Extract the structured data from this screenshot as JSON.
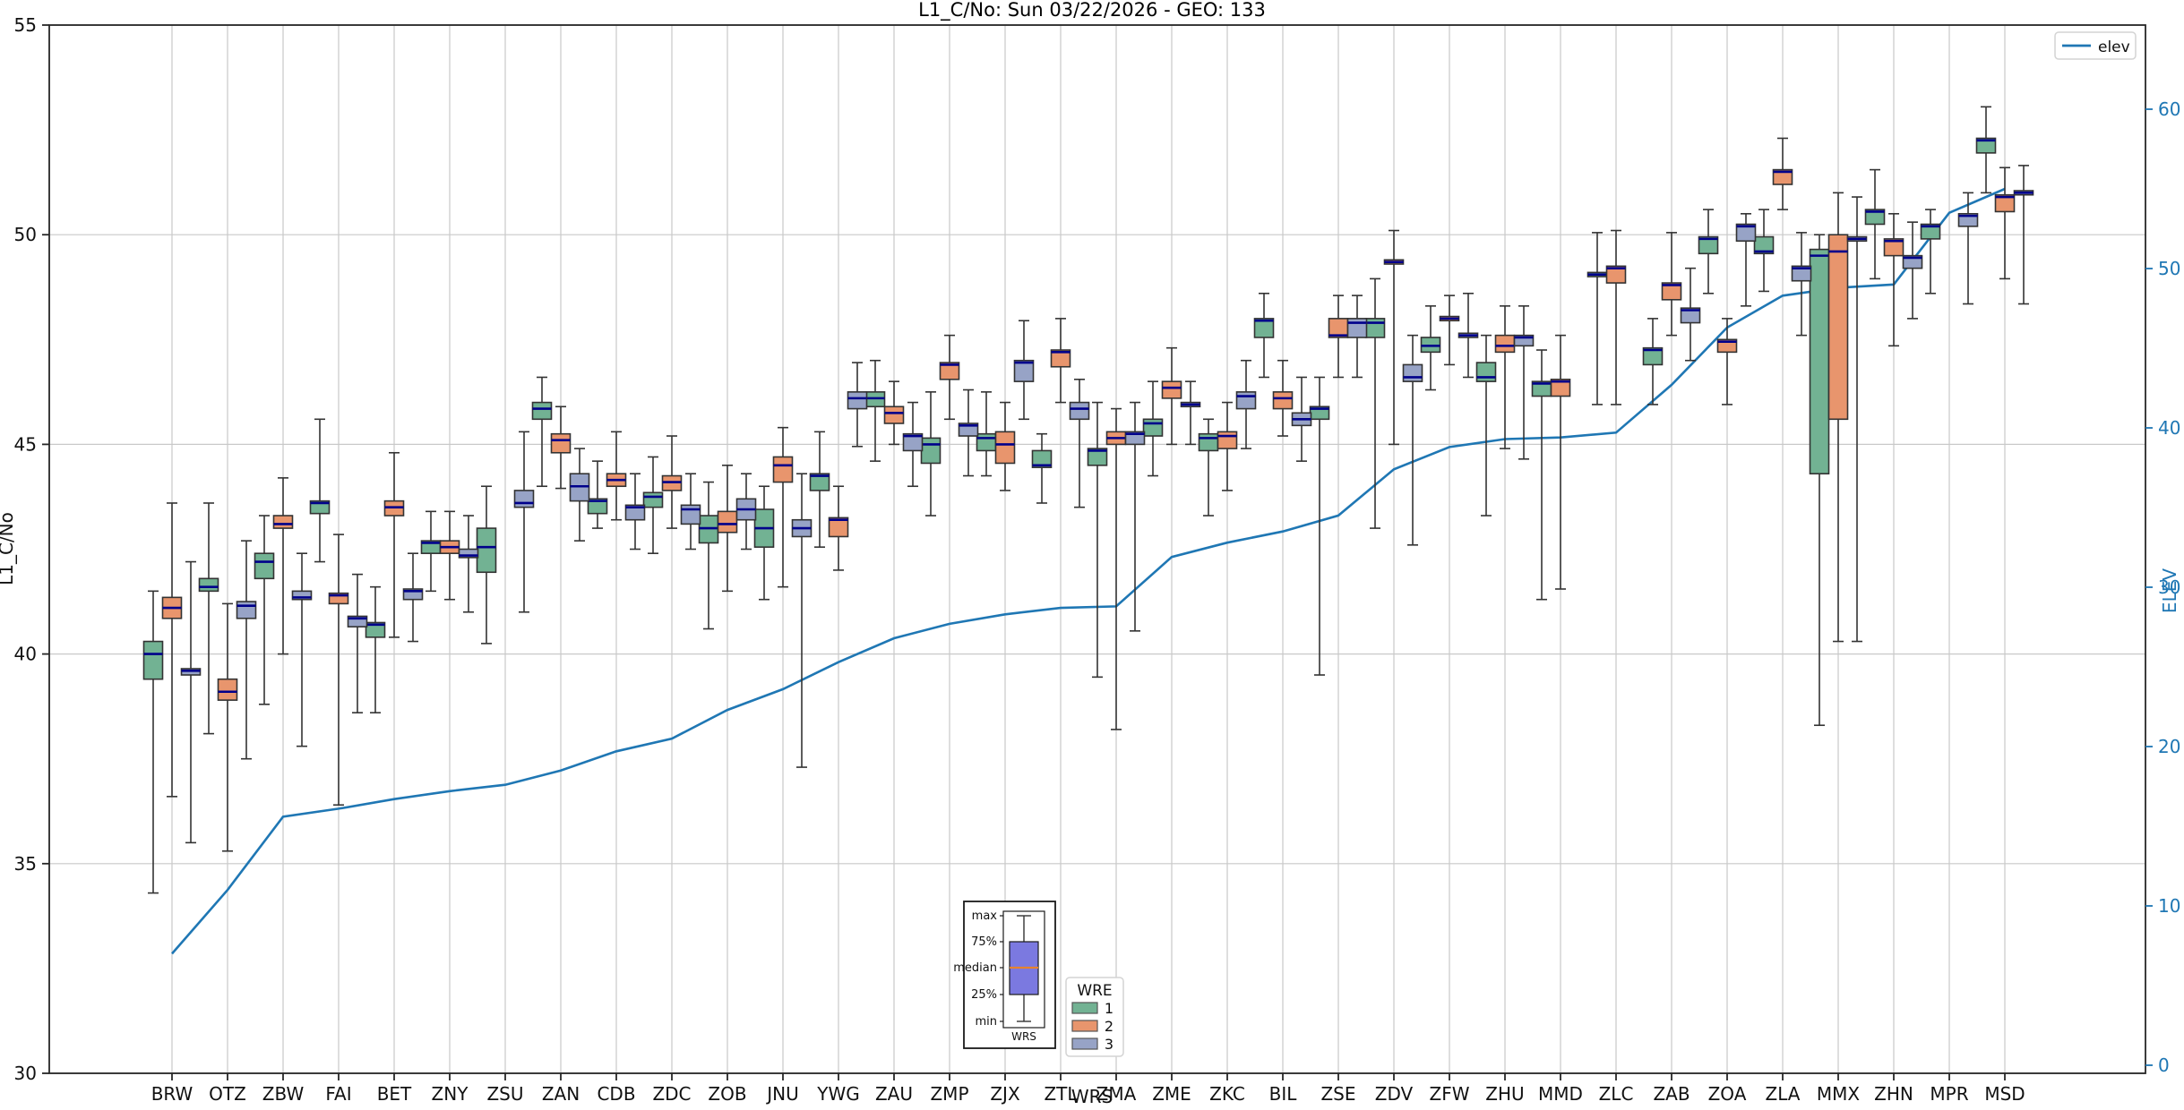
{
  "colors": {
    "wre1": "#72b293",
    "wre2": "#e8956d",
    "wre3": "#97a3c6",
    "box_edge": "#333333",
    "median": "#00008b",
    "whisker": "#333333",
    "elev_line": "#1f77b4",
    "grid": "#c9c9c9",
    "spine": "#262626",
    "right_axis_text": "#1f77b4",
    "legend_border": "#d4d4d4",
    "inset_box_fill": "#7b79e0",
    "inset_median": "#e8822d"
  },
  "chart_data": {
    "type": "boxplot+line",
    "title": "L1_C/No: Sun 03/22/2026 - GEO: 133",
    "xlabel": "WRS",
    "ylabel_left": "L1_C/No",
    "ylabel_right": "ELEV",
    "ylim_left": [
      30,
      55
    ],
    "yticks_left": [
      30,
      35,
      40,
      45,
      50,
      55
    ],
    "ylim_right": [
      0,
      65
    ],
    "yticks_right": [
      0,
      10,
      20,
      30,
      40,
      50,
      60
    ],
    "grid": true,
    "legend_line": {
      "label": "elev"
    },
    "legend_wre": {
      "title": "WRE",
      "items": [
        {
          "label": "1"
        },
        {
          "label": "2"
        },
        {
          "label": "3"
        }
      ]
    },
    "inset_legend": {
      "labels": [
        "max",
        "75%",
        "median",
        "25%",
        "min"
      ],
      "xlabel": "WRS"
    },
    "categories": [
      "BRW",
      "OTZ",
      "ZBW",
      "FAI",
      "BET",
      "ZNY",
      "ZSU",
      "ZAN",
      "CDB",
      "ZDC",
      "ZOB",
      "JNU",
      "YWG",
      "ZAU",
      "ZMP",
      "ZJX",
      "ZTL",
      "ZMA",
      "ZME",
      "ZKC",
      "BIL",
      "ZSE",
      "ZDV",
      "ZFW",
      "ZHU",
      "MMD",
      "ZLC",
      "ZAB",
      "ZOA",
      "ZLA",
      "MMX",
      "ZHN",
      "MPR",
      "MSD"
    ],
    "series": [
      {
        "name": "1",
        "boxes": [
          [
            34.3,
            39.4,
            40.0,
            40.3,
            41.5
          ],
          [
            38.1,
            41.5,
            41.6,
            41.8,
            43.6
          ],
          [
            38.8,
            41.8,
            42.2,
            42.4,
            43.3
          ],
          [
            42.2,
            43.35,
            43.6,
            43.65,
            45.6
          ],
          [
            38.6,
            40.4,
            40.7,
            40.75,
            41.6
          ],
          [
            41.5,
            42.4,
            42.65,
            42.7,
            43.4
          ],
          [
            40.25,
            41.95,
            42.55,
            43.0,
            44.0
          ],
          [
            44.0,
            45.6,
            45.85,
            46.0,
            46.6
          ],
          [
            43.0,
            43.35,
            43.65,
            43.7,
            44.6
          ],
          [
            42.4,
            43.5,
            43.75,
            43.85,
            44.7
          ],
          [
            40.6,
            42.65,
            43.0,
            43.3,
            44.1
          ],
          [
            41.3,
            42.55,
            43.0,
            43.45,
            44.0
          ],
          [
            42.55,
            43.9,
            44.25,
            44.3,
            45.3
          ],
          [
            44.6,
            45.9,
            46.1,
            46.25,
            47.0
          ],
          [
            43.3,
            44.55,
            45.0,
            45.15,
            46.25
          ],
          [
            44.25,
            44.85,
            45.15,
            45.25,
            46.25
          ],
          [
            43.6,
            44.45,
            44.5,
            44.85,
            45.25
          ],
          [
            39.45,
            44.5,
            44.85,
            44.9,
            46.0
          ],
          [
            44.25,
            45.2,
            45.5,
            45.6,
            46.5
          ],
          [
            43.3,
            44.85,
            45.15,
            45.25,
            45.6
          ],
          [
            46.6,
            47.55,
            47.95,
            48.0,
            48.6
          ],
          [
            39.5,
            45.6,
            45.85,
            45.9,
            46.6
          ],
          [
            43.0,
            47.55,
            47.9,
            48.0,
            48.95
          ],
          [
            46.3,
            47.2,
            47.35,
            47.55,
            48.3
          ],
          [
            43.3,
            46.5,
            46.6,
            46.95,
            47.6
          ],
          [
            41.3,
            46.15,
            46.45,
            46.5,
            47.25
          ],
          [
            45.95,
            49.0,
            49.05,
            49.1,
            50.05
          ],
          [
            45.95,
            46.9,
            47.25,
            47.3,
            48.0
          ],
          [
            48.6,
            49.55,
            49.9,
            49.95,
            50.6
          ],
          [
            48.65,
            49.55,
            49.6,
            49.95,
            50.6
          ],
          [
            38.3,
            44.3,
            49.5,
            49.65,
            50.0
          ],
          [
            48.95,
            50.25,
            50.55,
            50.6,
            51.55
          ],
          [
            48.6,
            49.9,
            50.2,
            50.25,
            50.6
          ],
          [
            51.0,
            51.95,
            52.25,
            52.3,
            53.05
          ]
        ]
      },
      {
        "name": "2",
        "boxes": [
          [
            36.6,
            40.85,
            41.1,
            41.35,
            43.6
          ],
          [
            35.3,
            38.9,
            39.1,
            39.4,
            41.2
          ],
          [
            40.0,
            43.0,
            43.1,
            43.3,
            44.2
          ],
          [
            36.4,
            41.2,
            41.4,
            41.45,
            42.85
          ],
          [
            40.4,
            43.3,
            43.5,
            43.65,
            44.8
          ],
          [
            41.3,
            42.4,
            42.55,
            42.7,
            43.4
          ],
          null,
          [
            43.95,
            44.8,
            45.1,
            45.25,
            45.9
          ],
          [
            43.2,
            44.0,
            44.15,
            44.3,
            45.3
          ],
          [
            43.0,
            43.9,
            44.1,
            44.25,
            45.2
          ],
          [
            41.5,
            42.9,
            43.1,
            43.4,
            44.5
          ],
          [
            41.6,
            44.1,
            44.5,
            44.7,
            45.4
          ],
          [
            42.0,
            42.8,
            43.2,
            43.25,
            44.0
          ],
          [
            45.0,
            45.5,
            45.75,
            45.9,
            46.5
          ],
          [
            45.6,
            46.55,
            46.9,
            46.95,
            47.6
          ],
          [
            43.9,
            44.55,
            45.0,
            45.3,
            46.0
          ],
          [
            46.0,
            46.85,
            47.2,
            47.25,
            48.0
          ],
          [
            38.2,
            45.0,
            45.15,
            45.3,
            45.85
          ],
          [
            45.0,
            46.1,
            46.35,
            46.5,
            47.3
          ],
          [
            43.9,
            44.9,
            45.2,
            45.3,
            46.0
          ],
          [
            45.2,
            45.85,
            46.1,
            46.25,
            47.0
          ],
          [
            46.6,
            47.55,
            47.6,
            48.0,
            48.55
          ],
          [
            45.0,
            49.3,
            49.35,
            49.4,
            50.1
          ],
          [
            46.9,
            47.95,
            48.0,
            48.05,
            48.55
          ],
          [
            44.9,
            47.2,
            47.35,
            47.6,
            48.3
          ],
          [
            41.55,
            46.15,
            46.5,
            46.55,
            47.6
          ],
          [
            45.95,
            48.85,
            49.2,
            49.25,
            50.1
          ],
          [
            47.6,
            48.45,
            48.8,
            48.85,
            50.05
          ],
          [
            45.95,
            47.2,
            47.45,
            47.5,
            48.0
          ],
          [
            50.6,
            51.2,
            51.5,
            51.55,
            52.3
          ],
          [
            40.3,
            45.6,
            49.6,
            50.0,
            51.0
          ],
          [
            47.35,
            49.5,
            49.85,
            49.9,
            50.5
          ],
          null,
          [
            48.95,
            50.55,
            50.9,
            50.95,
            51.6
          ]
        ]
      },
      {
        "name": "3",
        "boxes": [
          [
            35.5,
            39.5,
            39.6,
            39.65,
            42.2
          ],
          [
            37.5,
            40.85,
            41.15,
            41.25,
            42.7
          ],
          [
            37.8,
            41.3,
            41.35,
            41.5,
            42.4
          ],
          [
            38.6,
            40.65,
            40.85,
            40.9,
            41.9
          ],
          [
            40.3,
            41.3,
            41.5,
            41.55,
            42.4
          ],
          [
            41.0,
            42.3,
            42.35,
            42.5,
            43.3
          ],
          [
            41.0,
            43.5,
            43.6,
            43.9,
            45.3
          ],
          [
            42.7,
            43.65,
            44.0,
            44.3,
            44.9
          ],
          [
            42.5,
            43.2,
            43.5,
            43.55,
            44.3
          ],
          [
            42.5,
            43.1,
            43.45,
            43.55,
            44.3
          ],
          [
            42.5,
            43.2,
            43.45,
            43.7,
            44.3
          ],
          [
            37.3,
            42.8,
            43.0,
            43.2,
            44.3
          ],
          [
            44.95,
            45.85,
            46.1,
            46.25,
            46.95
          ],
          [
            44.0,
            44.85,
            45.2,
            45.25,
            46.0
          ],
          [
            44.25,
            45.2,
            45.45,
            45.5,
            46.3
          ],
          [
            45.6,
            46.5,
            46.95,
            47.0,
            47.95
          ],
          [
            43.5,
            45.6,
            45.85,
            46.0,
            46.55
          ],
          [
            40.55,
            45.0,
            45.25,
            45.3,
            46.0
          ],
          [
            45.0,
            45.9,
            45.95,
            46.0,
            46.5
          ],
          [
            44.9,
            45.85,
            46.15,
            46.25,
            47.0
          ],
          [
            44.6,
            45.45,
            45.6,
            45.75,
            46.6
          ],
          [
            46.6,
            47.55,
            47.9,
            48.0,
            48.55
          ],
          [
            42.6,
            46.5,
            46.6,
            46.9,
            47.6
          ],
          [
            46.6,
            47.55,
            47.6,
            47.65,
            48.6
          ],
          [
            44.65,
            47.35,
            47.55,
            47.6,
            48.3
          ],
          null,
          null,
          [
            47.0,
            47.9,
            48.2,
            48.25,
            49.2
          ],
          [
            48.3,
            49.85,
            50.2,
            50.25,
            50.5
          ],
          [
            47.6,
            48.9,
            49.2,
            49.25,
            50.05
          ],
          [
            40.3,
            49.85,
            49.9,
            49.95,
            50.9
          ],
          [
            48.0,
            49.2,
            49.45,
            49.5,
            50.3
          ],
          [
            48.35,
            50.2,
            50.45,
            50.5,
            51.0
          ],
          [
            48.35,
            50.95,
            51.0,
            51.05,
            51.65
          ]
        ]
      }
    ],
    "elev": [
      7.0,
      11.0,
      15.6,
      16.1,
      16.7,
      17.2,
      17.6,
      18.5,
      19.7,
      20.5,
      22.3,
      23.6,
      25.3,
      26.8,
      27.7,
      28.3,
      28.7,
      28.8,
      31.9,
      32.8,
      33.5,
      34.5,
      37.4,
      38.8,
      39.3,
      39.4,
      39.7,
      42.7,
      46.3,
      48.3,
      48.8,
      49.0,
      53.5,
      55.0
    ]
  }
}
